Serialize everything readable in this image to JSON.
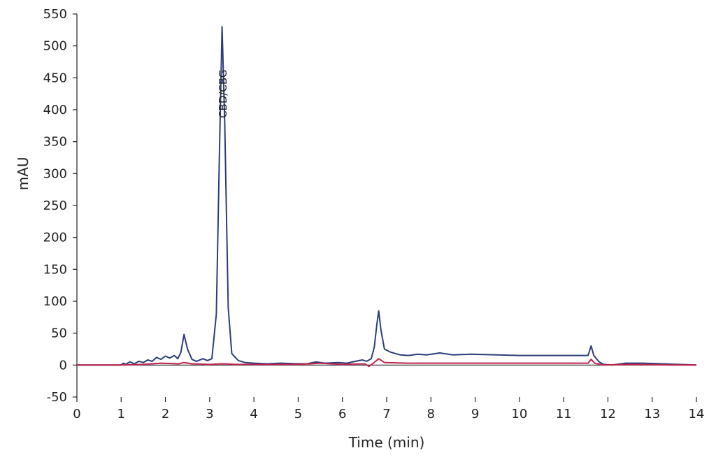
{
  "chart_data": {
    "type": "line",
    "title": "",
    "xlabel": "Time (min)",
    "ylabel": "mAU",
    "xlim": [
      0,
      14
    ],
    "ylim": [
      -50,
      550
    ],
    "xticks": [
      0,
      1,
      2,
      3,
      4,
      5,
      6,
      7,
      8,
      9,
      10,
      11,
      12,
      13,
      14
    ],
    "yticks": [
      -50,
      0,
      50,
      100,
      150,
      200,
      250,
      300,
      350,
      400,
      450,
      500,
      550
    ],
    "grid": false,
    "legend": "none",
    "annotations": [
      {
        "text": "CBD/CBG",
        "x": 3.38,
        "y": 425
      }
    ],
    "series": [
      {
        "color": "#2c3e7a",
        "points": [
          [
            0,
            0
          ],
          [
            1.0,
            0
          ],
          [
            1.05,
            3
          ],
          [
            1.1,
            1
          ],
          [
            1.2,
            5
          ],
          [
            1.3,
            2
          ],
          [
            1.4,
            6
          ],
          [
            1.5,
            4
          ],
          [
            1.6,
            8
          ],
          [
            1.7,
            6
          ],
          [
            1.8,
            12
          ],
          [
            1.9,
            9
          ],
          [
            2.0,
            14
          ],
          [
            2.1,
            11
          ],
          [
            2.2,
            15
          ],
          [
            2.28,
            10
          ],
          [
            2.35,
            20
          ],
          [
            2.42,
            48
          ],
          [
            2.5,
            25
          ],
          [
            2.6,
            9
          ],
          [
            2.7,
            6
          ],
          [
            2.85,
            10
          ],
          [
            2.95,
            7
          ],
          [
            3.05,
            10
          ],
          [
            3.15,
            80
          ],
          [
            3.22,
            330
          ],
          [
            3.28,
            530
          ],
          [
            3.34,
            380
          ],
          [
            3.42,
            90
          ],
          [
            3.5,
            18
          ],
          [
            3.65,
            7
          ],
          [
            3.8,
            4
          ],
          [
            4.0,
            3
          ],
          [
            4.3,
            2
          ],
          [
            4.6,
            3
          ],
          [
            5.0,
            2
          ],
          [
            5.2,
            2
          ],
          [
            5.4,
            5
          ],
          [
            5.6,
            3
          ],
          [
            5.9,
            4
          ],
          [
            6.1,
            3
          ],
          [
            6.3,
            6
          ],
          [
            6.45,
            8
          ],
          [
            6.55,
            6
          ],
          [
            6.65,
            10
          ],
          [
            6.72,
            28
          ],
          [
            6.78,
            65
          ],
          [
            6.82,
            85
          ],
          [
            6.87,
            55
          ],
          [
            6.95,
            25
          ],
          [
            7.1,
            20
          ],
          [
            7.3,
            16
          ],
          [
            7.5,
            15
          ],
          [
            7.7,
            17
          ],
          [
            7.9,
            16
          ],
          [
            8.2,
            19
          ],
          [
            8.5,
            16
          ],
          [
            8.9,
            17
          ],
          [
            9.5,
            16
          ],
          [
            10.0,
            15
          ],
          [
            10.5,
            15
          ],
          [
            11.0,
            15
          ],
          [
            11.55,
            15
          ],
          [
            11.62,
            30
          ],
          [
            11.68,
            15
          ],
          [
            11.8,
            5
          ],
          [
            11.9,
            1
          ],
          [
            12.1,
            0
          ],
          [
            12.4,
            3
          ],
          [
            12.8,
            3
          ],
          [
            13.2,
            2
          ],
          [
            13.6,
            1
          ],
          [
            14,
            0
          ]
        ]
      },
      {
        "color": "#c0234d",
        "points": [
          [
            0,
            0
          ],
          [
            1.0,
            0
          ],
          [
            1.5,
            1
          ],
          [
            1.9,
            3
          ],
          [
            2.3,
            2
          ],
          [
            2.42,
            4
          ],
          [
            2.6,
            2
          ],
          [
            3.0,
            1
          ],
          [
            3.28,
            2
          ],
          [
            3.6,
            1
          ],
          [
            4.0,
            1
          ],
          [
            5.0,
            1
          ],
          [
            5.5,
            3
          ],
          [
            6.0,
            1
          ],
          [
            6.5,
            2
          ],
          [
            6.6,
            -2
          ],
          [
            6.7,
            3
          ],
          [
            6.82,
            10
          ],
          [
            6.95,
            4
          ],
          [
            7.5,
            3
          ],
          [
            8.5,
            3
          ],
          [
            9.5,
            3
          ],
          [
            10.5,
            3
          ],
          [
            11.55,
            3
          ],
          [
            11.62,
            9
          ],
          [
            11.7,
            3
          ],
          [
            11.9,
            0
          ],
          [
            12.5,
            1
          ],
          [
            13.5,
            0
          ],
          [
            14,
            0
          ]
        ]
      }
    ]
  }
}
